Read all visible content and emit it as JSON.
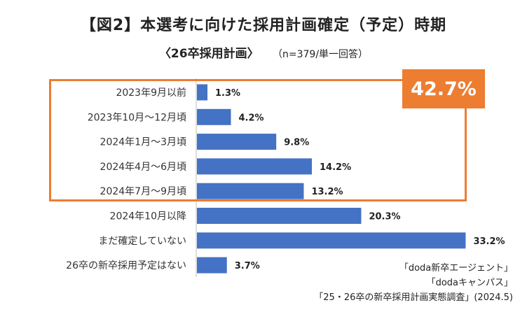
{
  "chart_data": {
    "type": "bar",
    "orientation": "horizontal",
    "title": "【図2】本選考に向けた採用計画確定（予定）時期",
    "subtitle": "〈26卒採用計画〉",
    "sample_note": "（n=379/単一回答）",
    "categories": [
      "2023年9月以前",
      "2023年10月～12月頃",
      "2024年1月～3月頃",
      "2024年4月～6月頃",
      "2024年7月～9月頃",
      "2024年10月以降",
      "まだ確定していない",
      "26卒の新卒採用予定はない"
    ],
    "values": [
      1.3,
      4.2,
      9.8,
      14.2,
      13.2,
      20.3,
      33.2,
      3.7
    ],
    "value_labels": [
      "1.3%",
      "4.2%",
      "9.8%",
      "14.2%",
      "13.2%",
      "20.3%",
      "33.2%",
      "3.7%"
    ],
    "unit": "%",
    "xlim": [
      0,
      35
    ],
    "grid": false,
    "bar_color": "#4472c4",
    "highlight": {
      "label": "42.7%",
      "covers_categories": [
        "2023年9月以前",
        "2023年10月～12月頃",
        "2024年1月～3月頃",
        "2024年4月～6月頃",
        "2024年7月～9月頃"
      ],
      "color": "#ed7d31"
    },
    "source": [
      "「doda新卒エージェント」",
      "「dodaキャンパス」",
      "「25・26卒の新卒採用計画実態調査」(2024.5)"
    ]
  }
}
